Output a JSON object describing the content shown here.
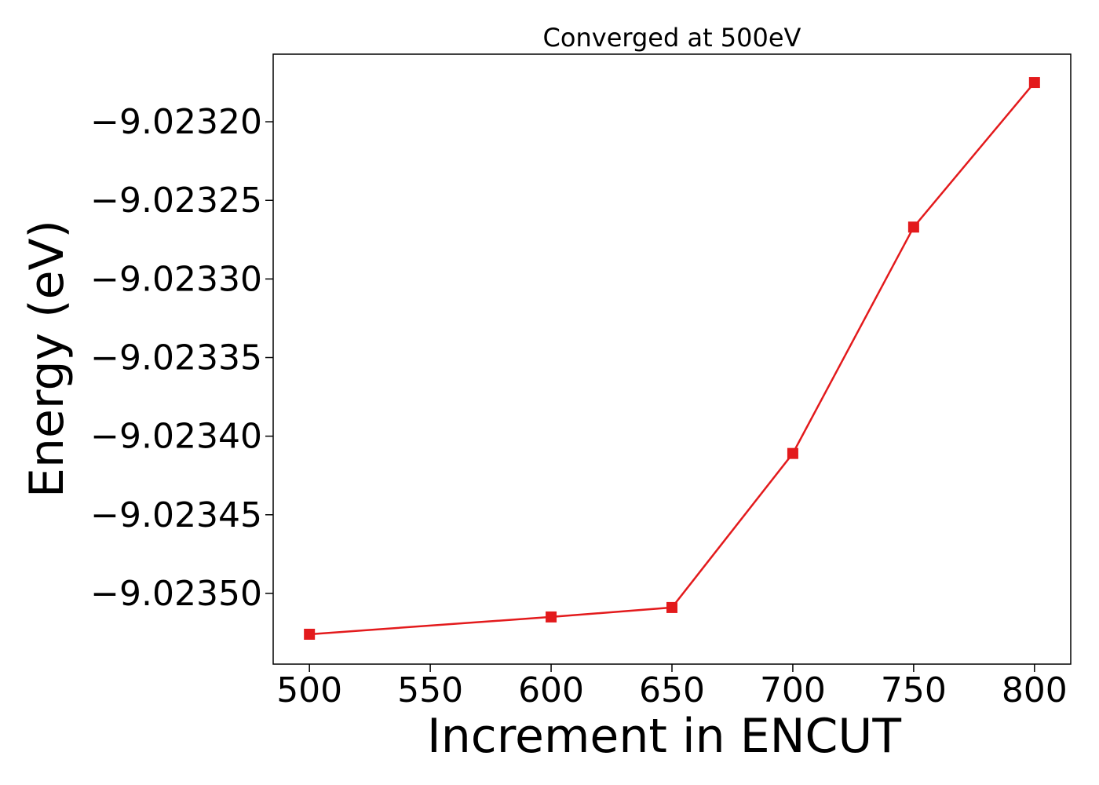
{
  "chart_data": {
    "type": "line",
    "title": "Converged at 500eV",
    "xlabel": "Increment in ENCUT",
    "ylabel": "Energy (eV)",
    "x": [
      500,
      600,
      650,
      700,
      750,
      800
    ],
    "series": [
      {
        "values": [
          -9.023526,
          -9.023515,
          -9.023509,
          -9.023411,
          -9.023267,
          -9.023175
        ],
        "color": "#e31a1c",
        "marker": "square"
      }
    ],
    "xlim": [
      485,
      815
    ],
    "ylim": [
      -9.023545,
      -9.023157
    ],
    "xticks": [
      500,
      550,
      600,
      650,
      700,
      750,
      800
    ],
    "xtick_labels": [
      "500",
      "550",
      "600",
      "650",
      "700",
      "750",
      "800"
    ],
    "yticks": [
      -9.0232,
      -9.02325,
      -9.0233,
      -9.02335,
      -9.0234,
      -9.02345,
      -9.0235
    ],
    "ytick_labels": [
      "−9.02320",
      "−9.02325",
      "−9.02330",
      "−9.02335",
      "−9.02340",
      "−9.02345",
      "−9.02350"
    ],
    "grid": false,
    "legend": "none"
  }
}
